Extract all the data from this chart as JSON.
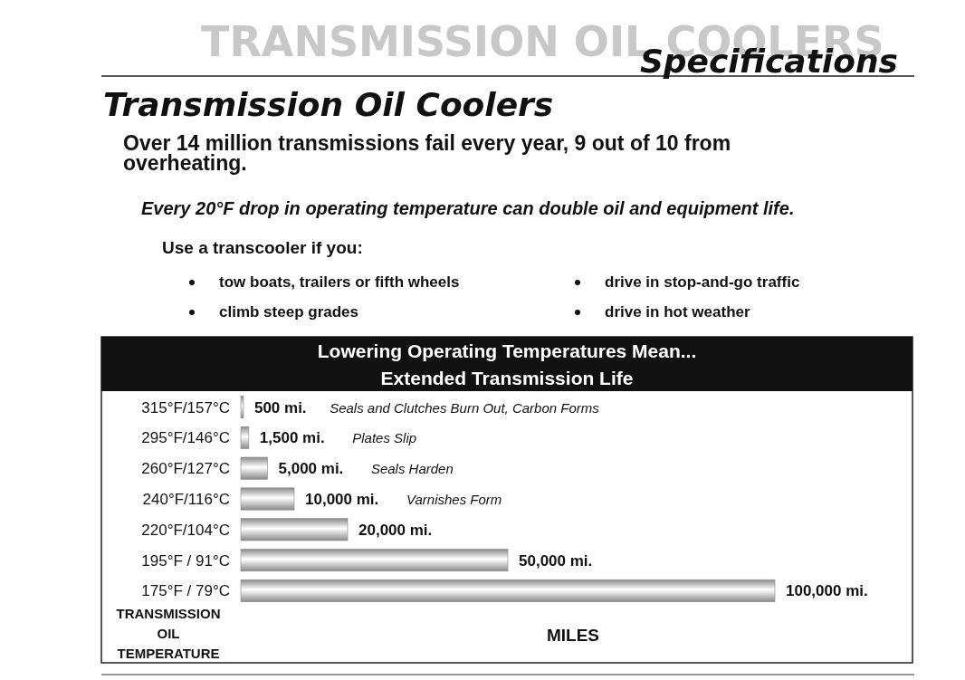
{
  "chart_data": {
    "type": "bar",
    "orientation": "horizontal",
    "title": "Lowering Operating Temperatures Mean...\nExtended Transmission Life",
    "ylabel": "TRANSMISSION\nOIL\nTEMPERATURE",
    "xlabel": "MILES",
    "categories": [
      "315°F/157°C",
      "295°F/146°C",
      "260°F/127°C",
      "240°F/116°C",
      "220°F/104°C",
      "195°F / 91°C",
      "175°F / 79°C"
    ],
    "values": [
      500,
      1500,
      5000,
      10000,
      20000,
      50000,
      100000
    ],
    "value_labels": [
      "500 mi.",
      "1,500 mi.",
      "5,000 mi.",
      "10,000 mi.",
      "20,000 mi.",
      "50,000 mi.",
      "100,000 mi."
    ],
    "color": "#8a8a8a",
    "annotations": [
      "TRANSMISSION OIL COOLERS",
      "Specifications",
      "Transmission Oil Coolers",
      "Over 14 million transmissions fail every year, 9 out of 10 from\noverheating.",
      "Every 20°F drop in operating temperature can double oil and equipment life.",
      "Use a transcooler if you:",
      "tow boats, trailers or fifth wheels",
      "climb steep grades",
      "drive in stop-and-go traffic",
      "drive in hot weather",
      "Seals and Clutches Burn Out, Carbon Forms",
      "Plates Slip",
      "Seals Harden",
      "Varnishes Form"
    ]
  }
}
